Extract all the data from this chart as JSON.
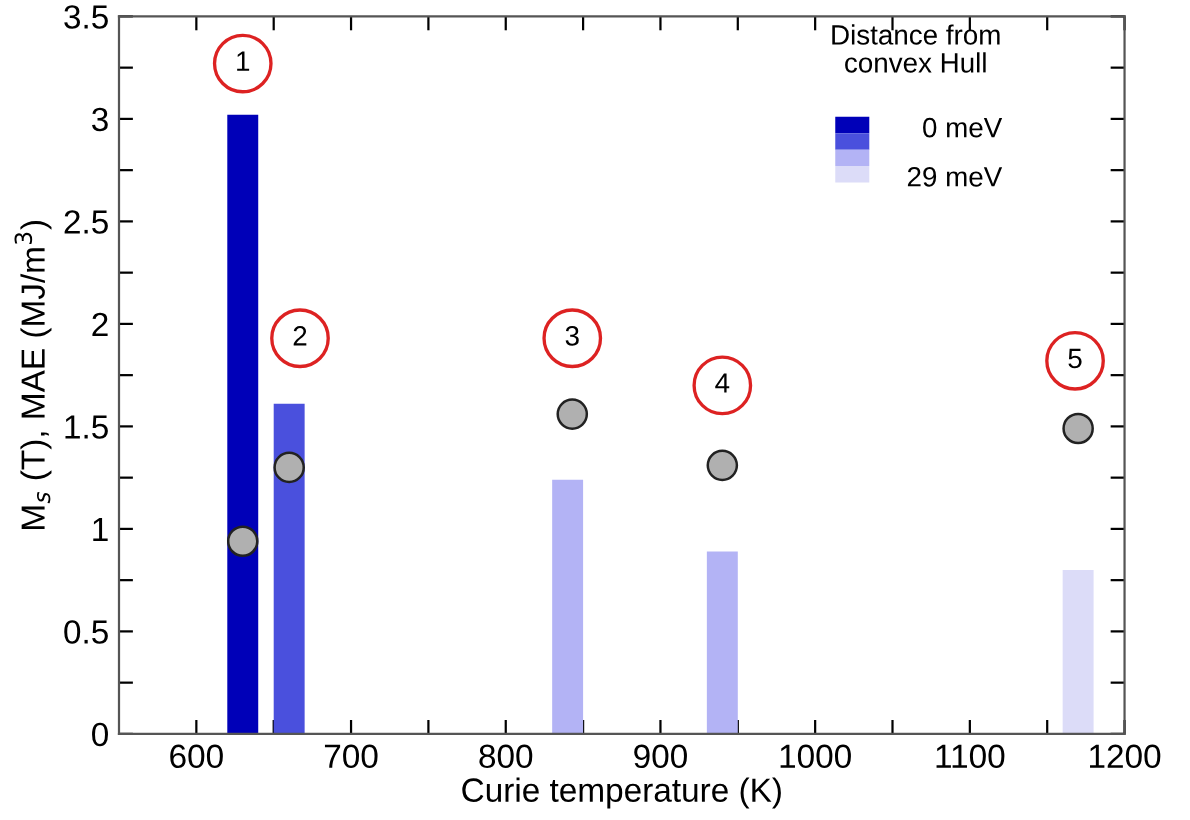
{
  "chart_data": {
    "type": "bar",
    "xlabel": "Curie temperature (K)",
    "ylabel": "M$_{s}$ (T), MAE (MJ/m$^{3}$)",
    "legend_title": "Distance from\nconvex Hull",
    "series": [
      {
        "x": [
          630,
          660,
          840,
          940,
          1170
        ],
        "values": [
          3.02,
          1.61,
          1.24,
          0.89,
          0.8
        ],
        "colors": [
          "#0000b8",
          "#4a50dd",
          "#b3b3f5",
          "#b3b3f5",
          "#dcdcf8"
        ]
      },
      {
        "type": "scatter",
        "x": [
          630,
          660,
          843,
          940,
          1170
        ],
        "values": [
          0.94,
          1.3,
          1.56,
          1.31,
          1.49
        ],
        "color": "#b0b0b0",
        "marker": "circle"
      }
    ],
    "annotations": [
      {
        "text": "1",
        "x": 630,
        "y": 3.27
      },
      {
        "text": "2",
        "x": 667,
        "y": 1.93
      },
      {
        "text": "3",
        "x": 843,
        "y": 1.93
      },
      {
        "text": "4",
        "x": 940,
        "y": 1.7
      },
      {
        "text": "5",
        "x": 1168,
        "y": 1.82
      },
      "0 meV",
      "29 meV"
    ],
    "xlim": [
      550,
      1200
    ],
    "xticks": [
      600,
      {
        "value": 650,
        "label": null
      },
      700,
      {
        "value": 750,
        "label": null
      },
      800,
      {
        "value": 850,
        "label": null
      },
      900,
      {
        "value": 950,
        "label": null
      },
      1000,
      {
        "value": 1050,
        "label": null
      },
      1100,
      {
        "value": 1150,
        "label": null
      },
      1200
    ],
    "ylim": [
      0,
      3.5
    ],
    "yticks": [
      0,
      {
        "value": 0.25,
        "label": null
      },
      0.5,
      {
        "value": 0.75,
        "label": null
      },
      1,
      {
        "value": 1.25,
        "label": null
      },
      1.5,
      {
        "value": 1.75,
        "label": null
      },
      2,
      {
        "value": 2.25,
        "label": null
      },
      2.5,
      {
        "value": 2.75,
        "label": null
      },
      3,
      {
        "value": 3.25,
        "label": null
      },
      3.5
    ],
    "grid": false,
    "legend": false
  }
}
